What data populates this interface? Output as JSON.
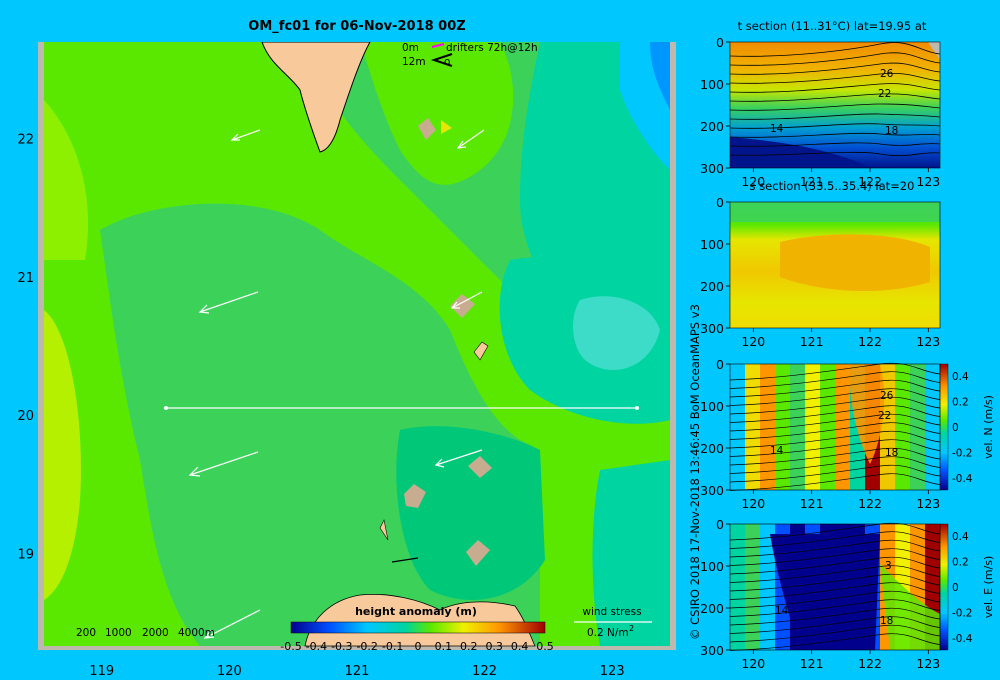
{
  "title": "OM_fc01 for 06-Nov-2018 00Z",
  "credit": "© CSIRO 2018   17-Nov-2018 13:46:45 BoM OceanMAPS v3",
  "colors": {
    "background": "#00c8ff",
    "frame": "#bdb9ae",
    "land": "#f7c99b",
    "island": "#c8ac90"
  },
  "map": {
    "legend_line1": {
      "depth": "0m",
      "text": "drifters 72h@12h"
    },
    "legend_line2": {
      "depth": "12m",
      "text": "o"
    },
    "scale_bar": [
      "200",
      "1000",
      "2000",
      "4000m"
    ],
    "colorbar": {
      "title": "height anomaly (m)",
      "ticks": [
        "-0.5",
        "-0.4",
        "-0.3",
        "-0.2",
        "-0.1",
        "0",
        "0.1",
        "0.2",
        "0.3",
        "0.4",
        "0.5"
      ]
    },
    "wind_stress": {
      "label": "wind stress",
      "value": "0.2 N/m",
      "exponent": "2"
    }
  },
  "chart_data": [
    {
      "type": "heatmap",
      "title": "OM_fc01 for 06-Nov-2018 00Z",
      "variable": "height anomaly (m)",
      "xlim": [
        118.5,
        123.5
      ],
      "ylim": [
        18.3,
        22.7
      ],
      "x_ticks": [
        "119",
        "120",
        "121",
        "122",
        "123"
      ],
      "y_ticks": [
        "19",
        "20",
        "21",
        "22"
      ],
      "section_line": {
        "lat": 20,
        "lon_start": 119.5,
        "lon_end": 123.2
      },
      "color_range": [
        -0.5,
        0.5
      ]
    },
    {
      "type": "heatmap",
      "title": "t section (11..31°C) lat=19.95 at",
      "x_ticks": [
        "120",
        "121",
        "122",
        "123"
      ],
      "y_ticks": [
        "0",
        "100",
        "200",
        "300"
      ],
      "ylim": [
        300,
        0
      ],
      "contour_labels": [
        "26",
        "22",
        "14",
        "18"
      ]
    },
    {
      "type": "heatmap",
      "title": "s section (33.5..35.4) lat=20",
      "x_ticks": [
        "120",
        "121",
        "122",
        "123"
      ],
      "y_ticks": [
        "0",
        "100",
        "200",
        "300"
      ],
      "ylim": [
        300,
        0
      ]
    },
    {
      "type": "heatmap",
      "title": "vel. N (m/s)",
      "x_ticks": [
        "120",
        "121",
        "122",
        "123"
      ],
      "y_ticks": [
        "0",
        "100",
        "200",
        "300"
      ],
      "ylim": [
        300,
        0
      ],
      "contour_labels": [
        "26",
        "22",
        "14",
        "18"
      ],
      "colorbar_ticks": [
        "0.4",
        "0.2",
        "0",
        "-0.2",
        "-0.4"
      ],
      "colorbar_label": "vel. N (m/s)"
    },
    {
      "type": "heatmap",
      "title": "vel. E (m/s)",
      "x_ticks": [
        "120",
        "121",
        "122",
        "123"
      ],
      "y_ticks": [
        "0",
        "100",
        "200",
        "300"
      ],
      "ylim": [
        300,
        0
      ],
      "contour_labels": [
        "3",
        "14",
        "18"
      ],
      "colorbar_ticks": [
        "0.4",
        "0.2",
        "0",
        "-0.2",
        "-0.4"
      ],
      "colorbar_label": "vel. E (m/s)"
    }
  ]
}
